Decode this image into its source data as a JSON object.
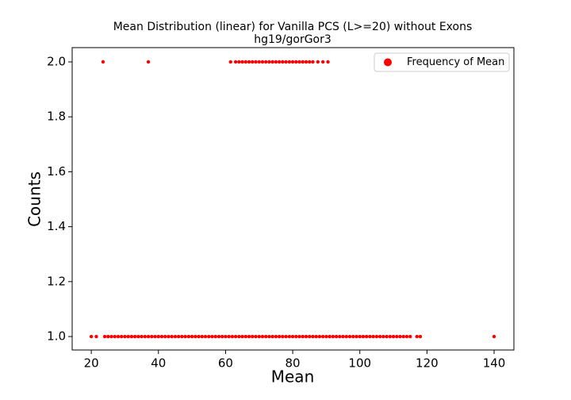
{
  "chart_data": {
    "type": "scatter",
    "title": "Mean Distribution (linear) for Vanilla PCS (L>=20) without Exons",
    "subtitle": "hg19/gorGor3",
    "xlabel": "Mean",
    "ylabel": "Counts",
    "xlim": [
      14.3,
      145.9
    ],
    "ylim": [
      0.951,
      2.052
    ],
    "xticks": [
      20,
      40,
      60,
      80,
      100,
      120,
      140
    ],
    "yticks": [
      {
        "value": 1,
        "label": "1.0"
      },
      1.2,
      1.4,
      1.6,
      1.8,
      {
        "value": 2,
        "label": "2.0"
      }
    ],
    "legend": "upper right",
    "series": [
      {
        "name": "Frequency of Mean",
        "color": "#ff0000",
        "x": [
          20,
          21.5,
          24,
          25,
          26,
          27,
          28,
          29,
          30,
          31,
          32,
          33,
          34,
          35,
          36,
          37,
          38,
          39,
          40,
          41,
          42,
          43,
          44,
          45,
          46,
          47,
          48,
          49,
          50,
          51,
          52,
          53,
          54,
          55,
          56,
          57,
          58,
          59,
          60,
          61,
          62,
          63,
          64,
          65,
          66,
          67,
          68,
          69,
          70,
          71,
          72,
          73,
          74,
          75,
          76,
          77,
          78,
          79,
          80,
          81,
          82,
          83,
          84,
          85,
          86,
          87,
          88,
          89,
          90,
          91,
          92,
          93,
          94,
          95,
          96,
          97,
          98,
          99,
          100,
          101,
          102,
          103,
          104,
          105,
          106,
          107,
          108,
          109,
          110,
          111,
          112,
          113,
          114,
          115,
          117,
          118,
          140,
          23.5,
          37,
          61.5,
          63,
          64,
          65,
          66,
          67,
          68,
          69,
          70,
          71,
          72,
          73,
          74,
          75,
          76,
          77,
          78,
          79,
          80,
          81,
          82,
          83,
          84,
          85,
          86,
          87.5,
          89,
          90.5
        ],
        "values": [
          1,
          1,
          1,
          1,
          1,
          1,
          1,
          1,
          1,
          1,
          1,
          1,
          1,
          1,
          1,
          1,
          1,
          1,
          1,
          1,
          1,
          1,
          1,
          1,
          1,
          1,
          1,
          1,
          1,
          1,
          1,
          1,
          1,
          1,
          1,
          1,
          1,
          1,
          1,
          1,
          1,
          1,
          1,
          1,
          1,
          1,
          1,
          1,
          1,
          1,
          1,
          1,
          1,
          1,
          1,
          1,
          1,
          1,
          1,
          1,
          1,
          1,
          1,
          1,
          1,
          1,
          1,
          1,
          1,
          1,
          1,
          1,
          1,
          1,
          1,
          1,
          1,
          1,
          1,
          1,
          1,
          1,
          1,
          1,
          1,
          1,
          1,
          1,
          1,
          1,
          1,
          1,
          1,
          1,
          1,
          1,
          1,
          2,
          2,
          2,
          2,
          2,
          2,
          2,
          2,
          2,
          2,
          2,
          2,
          2,
          2,
          2,
          2,
          2,
          2,
          2,
          2,
          2,
          2,
          2,
          2,
          2,
          2,
          2,
          2,
          2,
          2
        ]
      }
    ]
  }
}
